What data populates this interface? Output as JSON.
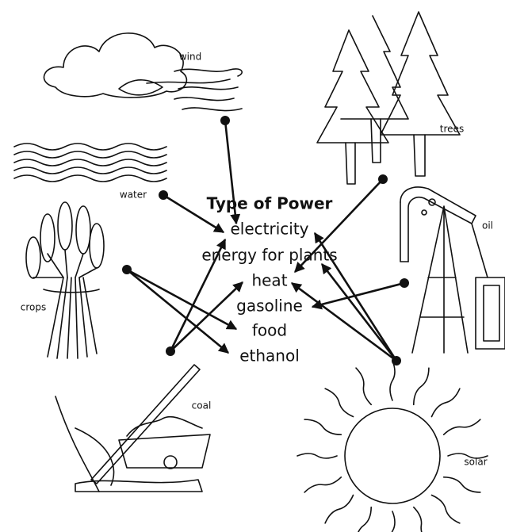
{
  "title": "Type of Power",
  "items": [
    "electricity",
    "energy for plants",
    "heat",
    "gasoline",
    "food",
    "ethanol"
  ],
  "sources": [
    "wind",
    "trees",
    "water",
    "oil",
    "crops",
    "coal",
    "solar"
  ]
}
